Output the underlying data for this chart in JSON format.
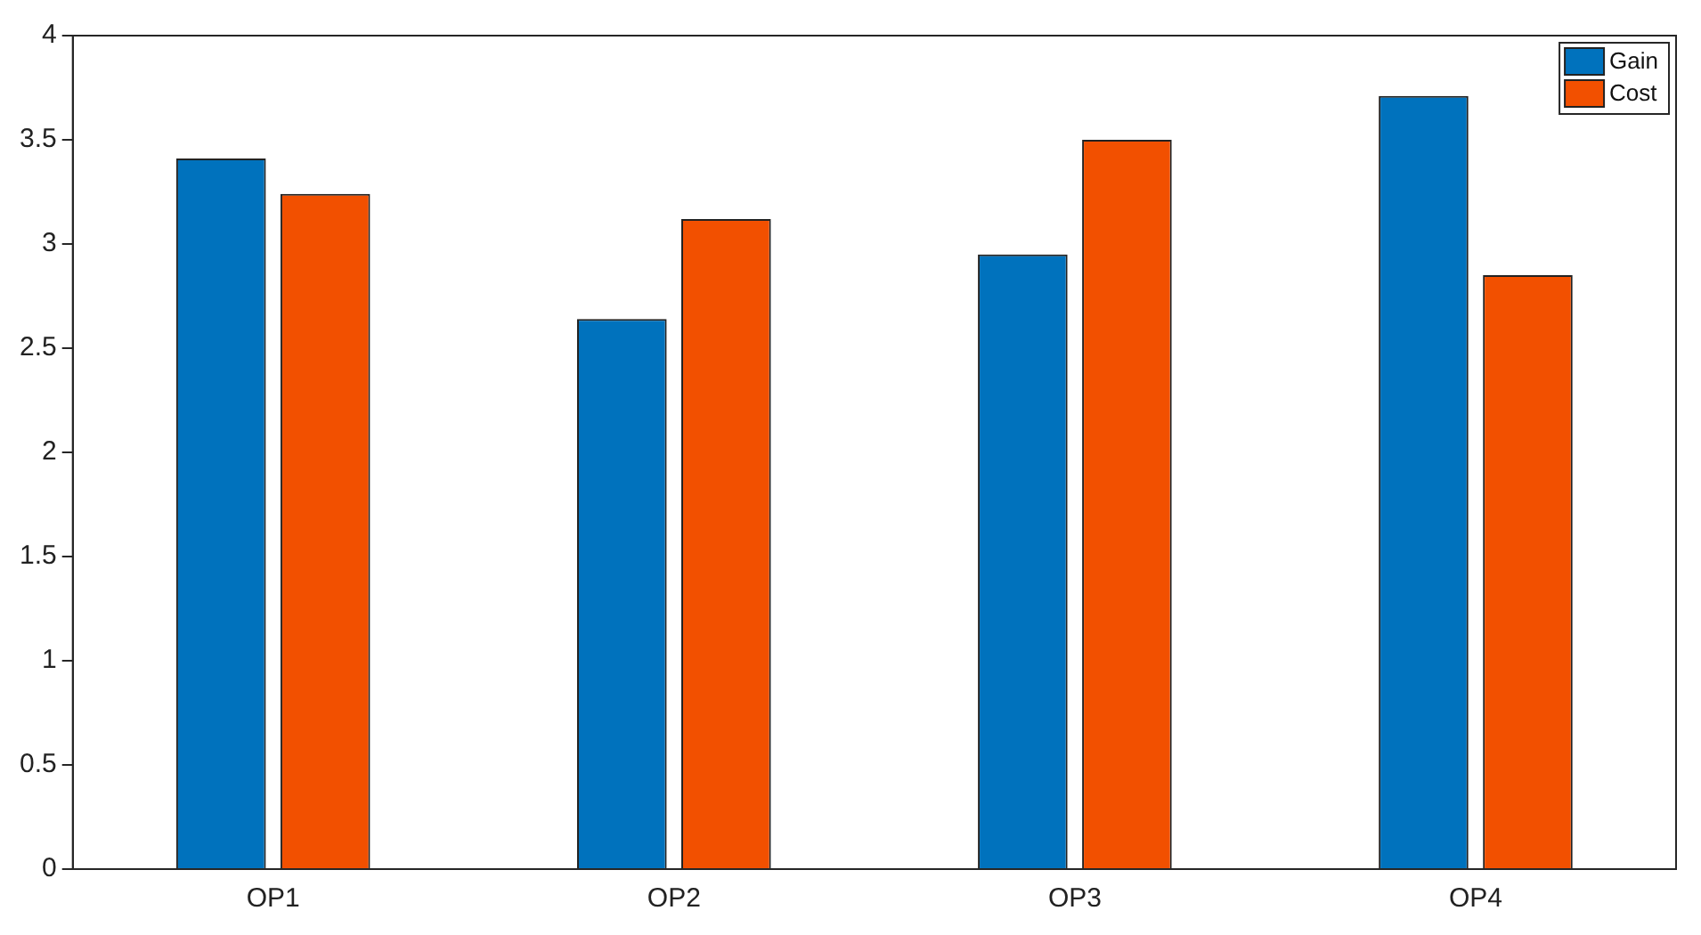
{
  "chart_data": {
    "type": "bar",
    "categories": [
      "OP1",
      "OP2",
      "OP3",
      "OP4"
    ],
    "series": [
      {
        "name": "Gain",
        "color": "#0072bd",
        "values": [
          3.41,
          2.64,
          2.95,
          3.71
        ]
      },
      {
        "name": "Cost",
        "color": "#f25000",
        "values": [
          3.24,
          3.12,
          3.5,
          2.85
        ]
      }
    ],
    "ylim": [
      0,
      4
    ],
    "yticks": [
      0,
      0.5,
      1,
      1.5,
      2,
      2.5,
      3,
      3.5,
      4
    ],
    "grid": false,
    "legend": "top right"
  }
}
